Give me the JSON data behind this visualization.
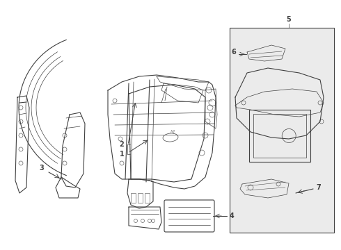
{
  "background_color": "#ffffff",
  "line_color": "#404040",
  "box_fill": "#f0f0f0",
  "figsize": [
    4.9,
    3.6
  ],
  "dpi": 100
}
